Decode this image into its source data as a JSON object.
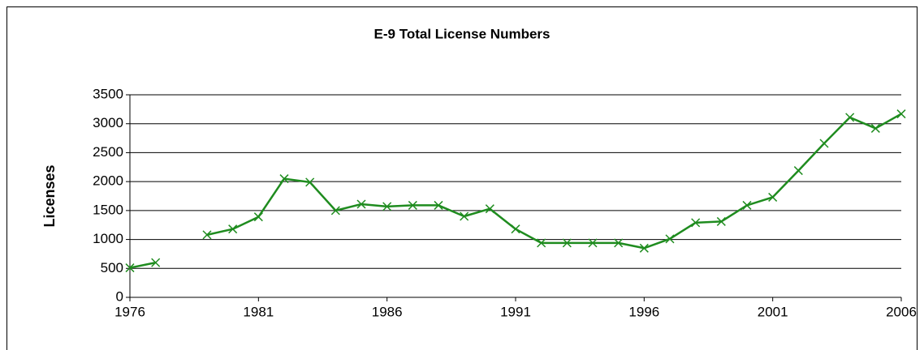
{
  "chart_data": {
    "type": "line",
    "title": "E-9 Total License Numbers",
    "ylabel": "Licenses",
    "x": [
      1976,
      1977,
      1978,
      1979,
      1980,
      1981,
      1982,
      1983,
      1984,
      1985,
      1986,
      1987,
      1988,
      1989,
      1990,
      1991,
      1992,
      1993,
      1994,
      1995,
      1996,
      1997,
      1998,
      1999,
      2000,
      2001,
      2002,
      2003,
      2004,
      2005,
      2006
    ],
    "values": [
      510,
      600,
      null,
      1080,
      1180,
      1390,
      2050,
      1990,
      1500,
      1610,
      1570,
      1590,
      1590,
      1400,
      1530,
      1180,
      940,
      940,
      940,
      940,
      850,
      1010,
      1290,
      1310,
      1590,
      1730,
      2190,
      2660,
      3110,
      2920,
      3170
    ],
    "color": "#1f8c1f",
    "xlim": [
      1976,
      2006
    ],
    "xticks": [
      1976,
      1981,
      1986,
      1991,
      1996,
      2001,
      2006
    ],
    "ylim": [
      0,
      3500
    ],
    "yticks": [
      0,
      500,
      1000,
      1500,
      2000,
      2500,
      3000,
      3500
    ],
    "grid": true
  }
}
